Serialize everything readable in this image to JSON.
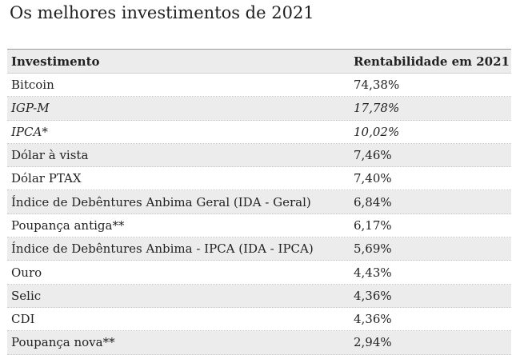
{
  "title": "Os melhores investimentos de 2021",
  "table": {
    "headers": [
      "Investimento",
      "Rentabilidade em 2021"
    ],
    "rows": [
      {
        "name": "Bitcoin",
        "value": "74,38%",
        "italic": false
      },
      {
        "name": "IGP-M",
        "value": "17,78%",
        "italic": true
      },
      {
        "name": "IPCA*",
        "value": "10,02%",
        "italic": true
      },
      {
        "name": "Dólar à vista",
        "value": "7,46%",
        "italic": false
      },
      {
        "name": "Dólar PTAX",
        "value": "7,40%",
        "italic": false
      },
      {
        "name": "Índice de Debêntures Anbima Geral (IDA - Geral)",
        "value": "6,84%",
        "italic": false
      },
      {
        "name": "Poupança antiga**",
        "value": "6,17%",
        "italic": false
      },
      {
        "name": "Índice de Debêntures Anbima - IPCA (IDA - IPCA)",
        "value": "5,69%",
        "italic": false
      },
      {
        "name": "Ouro",
        "value": "4,43%",
        "italic": false
      },
      {
        "name": "Selic",
        "value": "4,36%",
        "italic": false
      },
      {
        "name": "CDI",
        "value": "4,36%",
        "italic": false
      },
      {
        "name": "Poupança nova**",
        "value": "2,94%",
        "italic": false
      }
    ]
  }
}
